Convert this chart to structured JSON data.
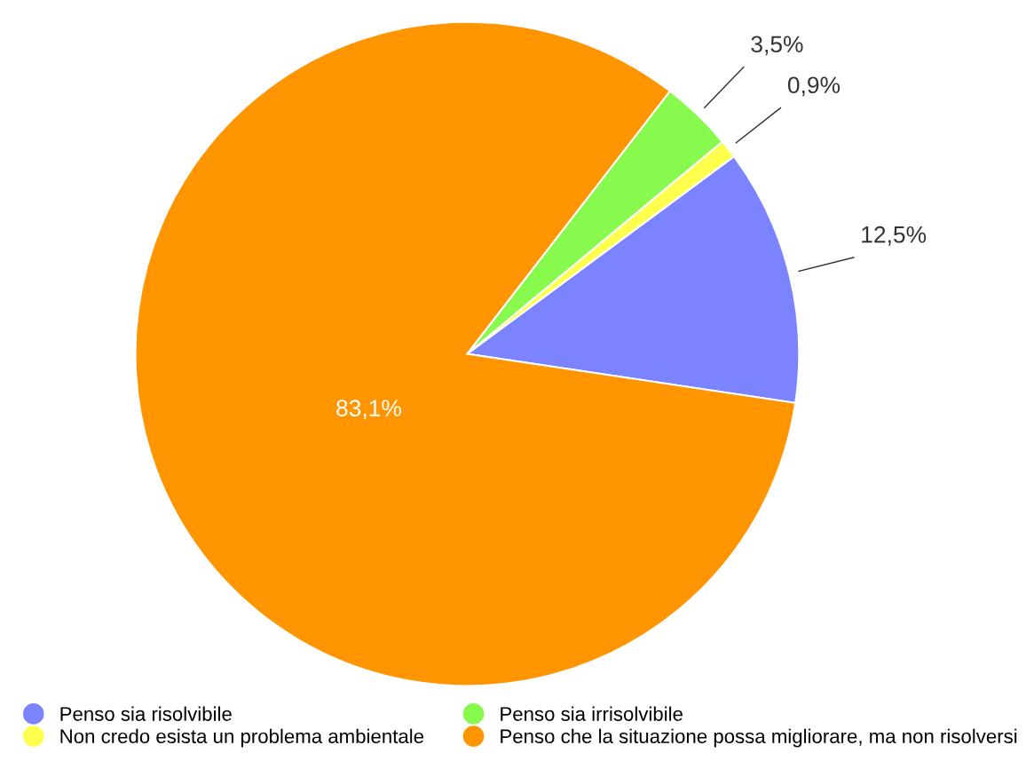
{
  "chart_data": {
    "type": "pie",
    "categories": [
      "Penso sia risolvibile",
      "Non credo esista un problema ambientale",
      "Penso sia irrisolvibile",
      "Penso che la situazione possa migliorare, ma non risolversi"
    ],
    "values": [
      12.5,
      0.9,
      3.5,
      83.1
    ],
    "colors": [
      "#7b83ff",
      "#ffff4d",
      "#88f94d",
      "#ff9500"
    ],
    "value_labels": [
      "12,5%",
      "0,9%",
      "3,5%",
      "83,1%"
    ],
    "legend": "bottom"
  }
}
